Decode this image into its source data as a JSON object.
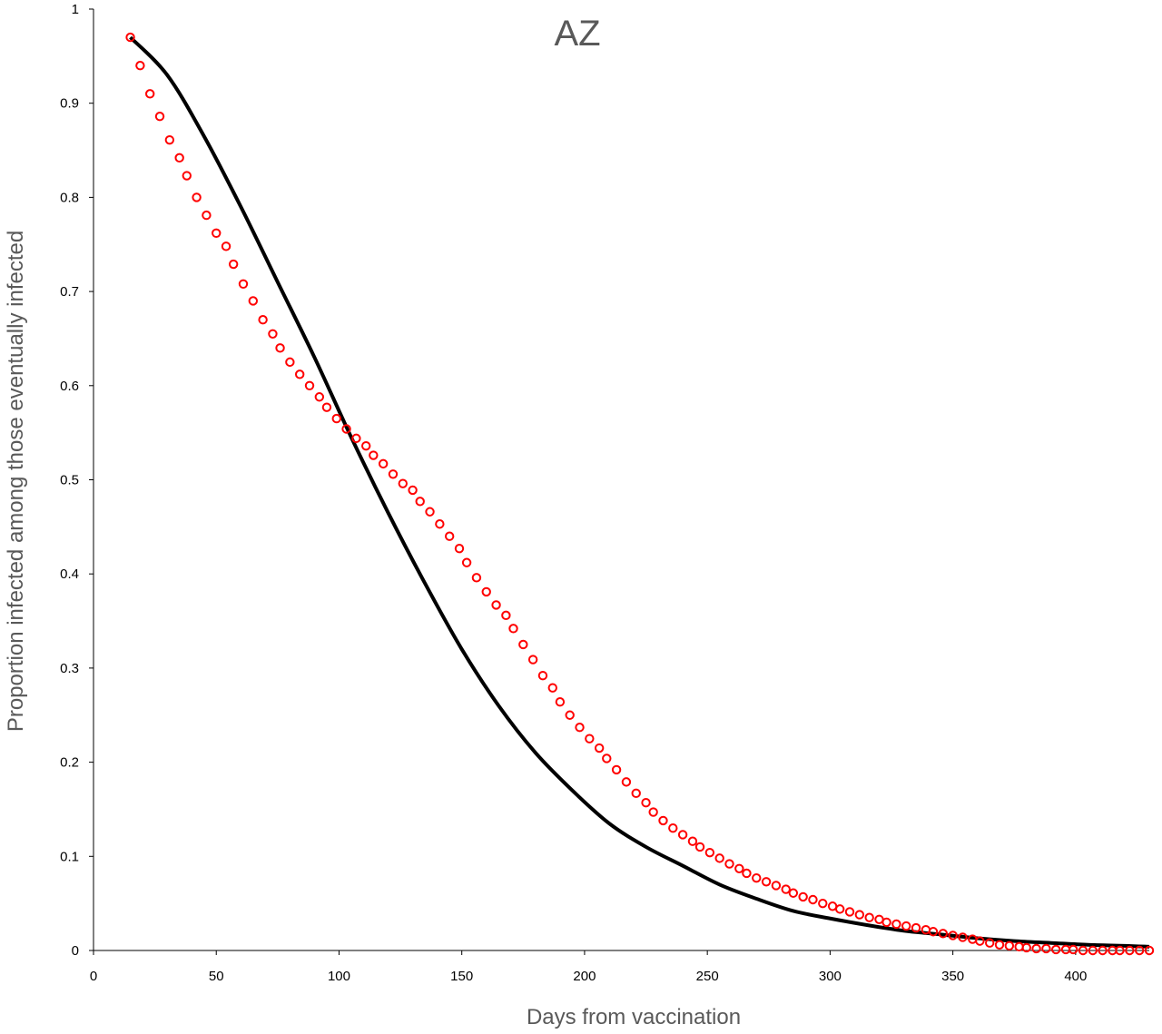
{
  "chart_data": {
    "type": "scatter",
    "title": "AZ",
    "xlabel": "Days from vaccination",
    "ylabel": "Proportion infected among those eventually infected",
    "xlim": [
      0,
      430
    ],
    "ylim": [
      0,
      1
    ],
    "x_ticks": [
      0,
      50,
      100,
      150,
      200,
      250,
      300,
      350,
      400
    ],
    "y_ticks": [
      0,
      0.1,
      0.2,
      0.3,
      0.4,
      0.5,
      0.6,
      0.7,
      0.8,
      0.9,
      1
    ],
    "y_tick_labels": [
      "0",
      "0.1",
      "0.2",
      "0.3",
      "0.4",
      "0.5",
      "0.6",
      "0.7",
      "0.8",
      "0.9",
      "1"
    ],
    "grid": false,
    "legend": "none",
    "colors": {
      "line": "#000000",
      "markers": "#ff0000"
    },
    "series": [
      {
        "kind": "line",
        "x": [
          15,
          30,
          45,
          60,
          75,
          90,
          105,
          120,
          135,
          150,
          165,
          180,
          195,
          210,
          225,
          240,
          255,
          270,
          285,
          300,
          315,
          330,
          345,
          360,
          375,
          390,
          405,
          420,
          430
        ],
        "y": [
          0.97,
          0.93,
          0.865,
          0.79,
          0.71,
          0.63,
          0.545,
          0.465,
          0.39,
          0.32,
          0.26,
          0.21,
          0.17,
          0.135,
          0.11,
          0.09,
          0.07,
          0.055,
          0.042,
          0.034,
          0.027,
          0.021,
          0.017,
          0.013,
          0.01,
          0.008,
          0.006,
          0.005,
          0.004
        ]
      },
      {
        "kind": "markers",
        "x": [
          15,
          19,
          23,
          27,
          31,
          35,
          38,
          42,
          46,
          50,
          54,
          57,
          61,
          65,
          69,
          73,
          76,
          80,
          84,
          88,
          92,
          95,
          99,
          103,
          107,
          111,
          114,
          118,
          122,
          126,
          130,
          133,
          137,
          141,
          145,
          149,
          152,
          156,
          160,
          164,
          168,
          171,
          175,
          179,
          183,
          187,
          190,
          194,
          198,
          202,
          206,
          209,
          213,
          217,
          221,
          225,
          228,
          232,
          236,
          240,
          244,
          247,
          251,
          255,
          259,
          263,
          266,
          270,
          274,
          278,
          282,
          285,
          289,
          293,
          297,
          301,
          304,
          308,
          312,
          316,
          320,
          323,
          327,
          331,
          335,
          339,
          342,
          346,
          350,
          354,
          358,
          361,
          365,
          369,
          373,
          377,
          380,
          384,
          388,
          392,
          396,
          399,
          403,
          407,
          411,
          415,
          418,
          422,
          426,
          430
        ],
        "y": [
          0.97,
          0.94,
          0.91,
          0.886,
          0.861,
          0.842,
          0.823,
          0.8,
          0.781,
          0.762,
          0.748,
          0.729,
          0.708,
          0.69,
          0.67,
          0.655,
          0.64,
          0.625,
          0.612,
          0.6,
          0.588,
          0.577,
          0.565,
          0.554,
          0.544,
          0.536,
          0.526,
          0.517,
          0.506,
          0.496,
          0.489,
          0.477,
          0.466,
          0.453,
          0.44,
          0.427,
          0.412,
          0.396,
          0.381,
          0.367,
          0.356,
          0.342,
          0.325,
          0.309,
          0.292,
          0.279,
          0.264,
          0.25,
          0.237,
          0.225,
          0.215,
          0.204,
          0.192,
          0.179,
          0.167,
          0.157,
          0.147,
          0.138,
          0.13,
          0.123,
          0.116,
          0.11,
          0.104,
          0.098,
          0.092,
          0.087,
          0.082,
          0.077,
          0.073,
          0.069,
          0.065,
          0.061,
          0.057,
          0.054,
          0.05,
          0.047,
          0.044,
          0.041,
          0.038,
          0.035,
          0.033,
          0.03,
          0.028,
          0.026,
          0.024,
          0.022,
          0.02,
          0.018,
          0.016,
          0.014,
          0.012,
          0.01,
          0.008,
          0.006,
          0.005,
          0.004,
          0.003,
          0.002,
          0.002,
          0.001,
          0.001,
          0.001,
          0,
          0,
          0,
          0,
          0,
          0,
          0,
          0
        ]
      }
    ]
  }
}
